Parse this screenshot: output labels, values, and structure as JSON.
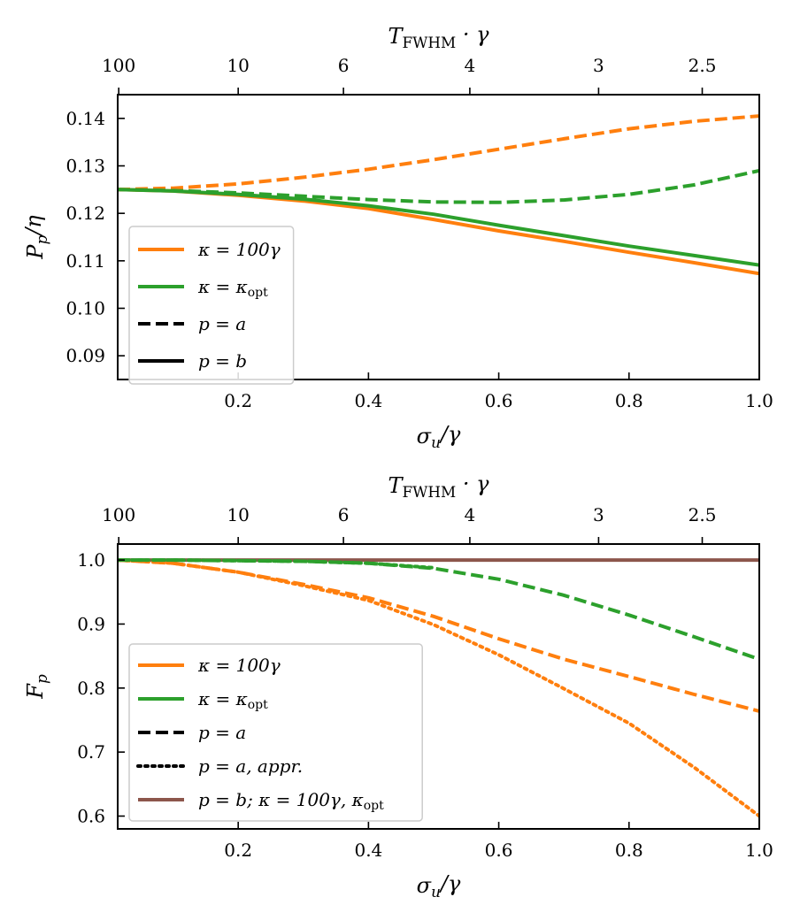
{
  "chart_data": [
    {
      "id": "top",
      "type": "line",
      "ylabel": "Pp/η",
      "xlabel": "σu/γ",
      "top_xlabel": "T_FWHM · γ",
      "xlim": [
        0.015,
        1.0
      ],
      "ylim": [
        0.085,
        0.145
      ],
      "xticks": [
        0.2,
        0.4,
        0.6,
        0.8,
        1.0
      ],
      "xtick_labels": [
        "0.2",
        "0.4",
        "0.6",
        "0.8",
        "1.0"
      ],
      "yticks": [
        0.09,
        0.1,
        0.11,
        0.12,
        0.13,
        0.14
      ],
      "ytick_labels": [
        "0.09",
        "0.10",
        "0.11",
        "0.12",
        "0.13",
        "0.14"
      ],
      "top_ticks": [
        0.0166,
        0.2,
        0.3616,
        0.5556,
        0.7533,
        0.9124
      ],
      "top_tick_labels": [
        "100",
        "10",
        "6",
        "4",
        "3",
        "2.5"
      ],
      "series": [
        {
          "name": "κ = 100γ, p = a",
          "color": "#ff7f0e",
          "dash": "dashed",
          "x": [
            0.015,
            0.1,
            0.2,
            0.3,
            0.4,
            0.5,
            0.6,
            0.7,
            0.8,
            0.9,
            1.0
          ],
          "y": [
            0.125,
            0.1253,
            0.1262,
            0.1276,
            0.1293,
            0.1313,
            0.1335,
            0.1357,
            0.1378,
            0.1394,
            0.1405
          ]
        },
        {
          "name": "κ = κopt, p = a",
          "color": "#2ca02c",
          "dash": "dashed",
          "x": [
            0.015,
            0.1,
            0.2,
            0.3,
            0.4,
            0.5,
            0.6,
            0.7,
            0.8,
            0.9,
            1.0
          ],
          "y": [
            0.125,
            0.1248,
            0.1243,
            0.1236,
            0.1229,
            0.1224,
            0.1223,
            0.1228,
            0.124,
            0.126,
            0.129
          ]
        },
        {
          "name": "κ = 100γ, p = b",
          "color": "#ff7f0e",
          "dash": "solid",
          "x": [
            0.015,
            0.1,
            0.2,
            0.3,
            0.4,
            0.5,
            0.6,
            0.7,
            0.8,
            0.9,
            1.0
          ],
          "y": [
            0.125,
            0.1247,
            0.1238,
            0.1226,
            0.121,
            0.1187,
            0.1163,
            0.1141,
            0.1118,
            0.1096,
            0.1073
          ]
        },
        {
          "name": "κ = κopt, p = b",
          "color": "#2ca02c",
          "dash": "solid",
          "x": [
            0.015,
            0.1,
            0.2,
            0.3,
            0.4,
            0.5,
            0.6,
            0.7,
            0.8,
            0.9,
            1.0
          ],
          "y": [
            0.125,
            0.1247,
            0.124,
            0.123,
            0.1216,
            0.1198,
            0.1175,
            0.1153,
            0.1131,
            0.1111,
            0.1091
          ]
        }
      ],
      "legend": {
        "placement": "lower-left",
        "entries": [
          {
            "label": "κ = 100γ",
            "color": "#ff7f0e",
            "dash": "solid"
          },
          {
            "label": "κ = κopt",
            "color": "#2ca02c",
            "dash": "solid"
          },
          {
            "label": "p = a",
            "color": "#000000",
            "dash": "dashed"
          },
          {
            "label": "p = b",
            "color": "#000000",
            "dash": "solid"
          }
        ]
      }
    },
    {
      "id": "bottom",
      "type": "line",
      "ylabel": "Fp",
      "xlabel": "σu/γ",
      "top_xlabel": "T_FWHM · γ",
      "xlim": [
        0.015,
        1.0
      ],
      "ylim": [
        0.58,
        1.025
      ],
      "xticks": [
        0.2,
        0.4,
        0.6,
        0.8,
        1.0
      ],
      "xtick_labels": [
        "0.2",
        "0.4",
        "0.6",
        "0.8",
        "1.0"
      ],
      "yticks": [
        0.6,
        0.7,
        0.8,
        0.9,
        1.0
      ],
      "ytick_labels": [
        "0.6",
        "0.7",
        "0.8",
        "0.9",
        "1.0"
      ],
      "top_ticks": [
        0.0166,
        0.2,
        0.3616,
        0.5556,
        0.7533,
        0.9124
      ],
      "top_tick_labels": [
        "100",
        "10",
        "6",
        "4",
        "3",
        "2.5"
      ],
      "series": [
        {
          "name": "p = b; κ = 100γ, κopt",
          "color": "#8c564b",
          "dash": "solid",
          "x": [
            0.015,
            1.0
          ],
          "y": [
            1.0,
            1.0
          ]
        },
        {
          "name": "κ = 100γ, p = a",
          "color": "#ff7f0e",
          "dash": "dashed",
          "x": [
            0.015,
            0.1,
            0.2,
            0.3,
            0.4,
            0.5,
            0.6,
            0.7,
            0.8,
            0.9,
            1.0
          ],
          "y": [
            1.0,
            0.995,
            0.981,
            0.962,
            0.941,
            0.912,
            0.877,
            0.845,
            0.818,
            0.79,
            0.764
          ]
        },
        {
          "name": "κ = 100γ, p = a, appr.",
          "color": "#ff7f0e",
          "dash": "dotted",
          "x": [
            0.015,
            0.1,
            0.2,
            0.3,
            0.4,
            0.5,
            0.6,
            0.7,
            0.8,
            0.9,
            1.0
          ],
          "y": [
            1.0,
            0.995,
            0.981,
            0.96,
            0.937,
            0.899,
            0.852,
            0.799,
            0.745,
            0.676,
            0.6
          ]
        },
        {
          "name": "κ = κopt, p = a",
          "color": "#2ca02c",
          "dash": "dashed",
          "x": [
            0.015,
            0.1,
            0.2,
            0.3,
            0.4,
            0.5,
            0.6,
            0.7,
            0.8,
            0.9,
            1.0
          ],
          "y": [
            1.0,
            1.0,
            0.999,
            0.998,
            0.995,
            0.987,
            0.97,
            0.945,
            0.914,
            0.88,
            0.845
          ]
        },
        {
          "name": "κ = κopt, p = a, appr.",
          "color": "#2ca02c",
          "dash": "dotted",
          "x": [
            0.015,
            0.1,
            0.2,
            0.3,
            0.4,
            0.5
          ],
          "y": [
            1.0,
            1.0,
            0.999,
            0.998,
            0.995,
            0.988
          ]
        }
      ],
      "legend": {
        "placement": "lower-left",
        "entries": [
          {
            "label": "κ = 100γ",
            "color": "#ff7f0e",
            "dash": "solid"
          },
          {
            "label": "κ = κopt",
            "color": "#2ca02c",
            "dash": "solid"
          },
          {
            "label": "p = a",
            "color": "#000000",
            "dash": "dashed"
          },
          {
            "label": "p = a, appr.",
            "color": "#000000",
            "dash": "dotted"
          },
          {
            "label": "p = b; κ = 100γ, κopt",
            "color": "#8c564b",
            "dash": "solid"
          }
        ]
      }
    }
  ]
}
